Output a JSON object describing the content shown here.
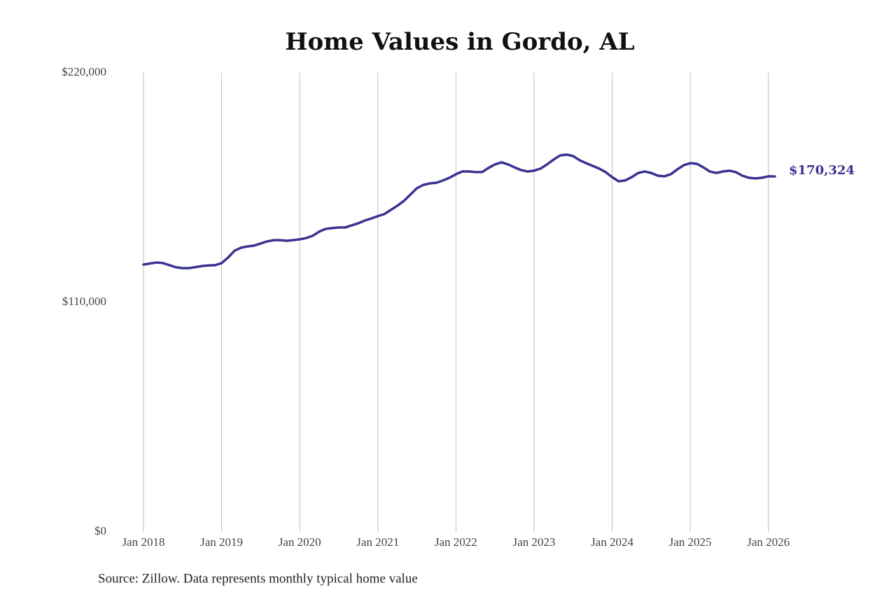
{
  "chart_data": {
    "type": "line",
    "title": "Home Values in Gordo, AL",
    "source": "Source: Zillow. Data represents monthly typical home value",
    "color": "#3a3391",
    "x": [
      "2018-01",
      "2018-02",
      "2018-03",
      "2018-04",
      "2018-05",
      "2018-06",
      "2018-07",
      "2018-08",
      "2018-09",
      "2018-10",
      "2018-11",
      "2018-12",
      "2019-01",
      "2019-02",
      "2019-03",
      "2019-04",
      "2019-05",
      "2019-06",
      "2019-07",
      "2019-08",
      "2019-09",
      "2019-10",
      "2019-11",
      "2019-12",
      "2020-01",
      "2020-02",
      "2020-03",
      "2020-04",
      "2020-05",
      "2020-06",
      "2020-07",
      "2020-08",
      "2020-09",
      "2020-10",
      "2020-11",
      "2020-12",
      "2021-01",
      "2021-02",
      "2021-03",
      "2021-04",
      "2021-05",
      "2021-06",
      "2021-07",
      "2021-08",
      "2021-09",
      "2021-10",
      "2021-11",
      "2021-12",
      "2022-01",
      "2022-02",
      "2022-03",
      "2022-04",
      "2022-05",
      "2022-06",
      "2022-07",
      "2022-08",
      "2022-09",
      "2022-10",
      "2022-11",
      "2022-12",
      "2023-01",
      "2023-02",
      "2023-03",
      "2023-04",
      "2023-05",
      "2023-06",
      "2023-07",
      "2023-08",
      "2023-09",
      "2023-10",
      "2023-11",
      "2023-12",
      "2024-01",
      "2024-02",
      "2024-03",
      "2024-04",
      "2024-05",
      "2024-06",
      "2024-07",
      "2024-08",
      "2024-09",
      "2024-10",
      "2024-11",
      "2024-12",
      "2025-01",
      "2025-02",
      "2025-03",
      "2025-04",
      "2025-05",
      "2025-06",
      "2025-07",
      "2025-08",
      "2025-09",
      "2025-10",
      "2025-11",
      "2025-12",
      "2026-01",
      "2026-02"
    ],
    "values": [
      128100,
      128600,
      129100,
      128800,
      127800,
      126800,
      126400,
      126400,
      126900,
      127400,
      127700,
      127800,
      128800,
      131500,
      134800,
      136200,
      136800,
      137200,
      138200,
      139200,
      139800,
      139800,
      139500,
      139800,
      140200,
      140800,
      141900,
      143900,
      145200,
      145600,
      145900,
      145900,
      146900,
      147900,
      149200,
      150200,
      151300,
      152300,
      154300,
      156300,
      158600,
      161600,
      164700,
      166300,
      167000,
      167300,
      168400,
      169700,
      171400,
      172700,
      172700,
      172400,
      172400,
      174400,
      176100,
      177100,
      176100,
      174700,
      173400,
      172700,
      173100,
      174100,
      176100,
      178400,
      180400,
      180800,
      180100,
      178100,
      176700,
      175400,
      174100,
      172400,
      170000,
      168000,
      168400,
      170000,
      172000,
      172700,
      172000,
      170700,
      170400,
      171400,
      173700,
      175700,
      176700,
      176400,
      174700,
      172700,
      172000,
      172700,
      173100,
      172400,
      170700,
      169700,
      169400,
      169700,
      170400,
      170324
    ],
    "value_labels": [
      null,
      null,
      null,
      null,
      null,
      null,
      null,
      null,
      null,
      null,
      null,
      null,
      null,
      null,
      null,
      null,
      null,
      null,
      null,
      null,
      null,
      null,
      null,
      null,
      null,
      null,
      null,
      null,
      null,
      null,
      null,
      null,
      null,
      null,
      null,
      null,
      null,
      null,
      null,
      null,
      null,
      null,
      null,
      null,
      null,
      null,
      null,
      null,
      null,
      null,
      null,
      null,
      null,
      null,
      null,
      null,
      null,
      null,
      null,
      null,
      null,
      null,
      null,
      null,
      null,
      null,
      null,
      null,
      null,
      null,
      null,
      null,
      null,
      null,
      null,
      null,
      null,
      null,
      null,
      null,
      null,
      null,
      null,
      null,
      null,
      null,
      null,
      null,
      null,
      null,
      null,
      null,
      null,
      null,
      null,
      null,
      null,
      "$170,324"
    ],
    "xlim": [
      "2018-01",
      "2026-02"
    ],
    "xticks": [
      {
        "value": "2018-01",
        "label": "Jan 2018"
      },
      {
        "value": "2019-01",
        "label": "Jan 2019"
      },
      {
        "value": "2020-01",
        "label": "Jan 2020"
      },
      {
        "value": "2021-01",
        "label": "Jan 2021"
      },
      {
        "value": "2022-01",
        "label": "Jan 2022"
      },
      {
        "value": "2023-01",
        "label": "Jan 2023"
      },
      {
        "value": "2024-01",
        "label": "Jan 2024"
      },
      {
        "value": "2025-01",
        "label": "Jan 2025"
      },
      {
        "value": "2026-01",
        "label": "Jan 2026"
      }
    ],
    "ylim": [
      0,
      220000
    ],
    "yticks": [
      {
        "value": 0,
        "label": "$0"
      },
      {
        "value": 110000,
        "label": "$110,000"
      },
      {
        "value": 220000,
        "label": "$220,000"
      }
    ],
    "grid": "x"
  }
}
